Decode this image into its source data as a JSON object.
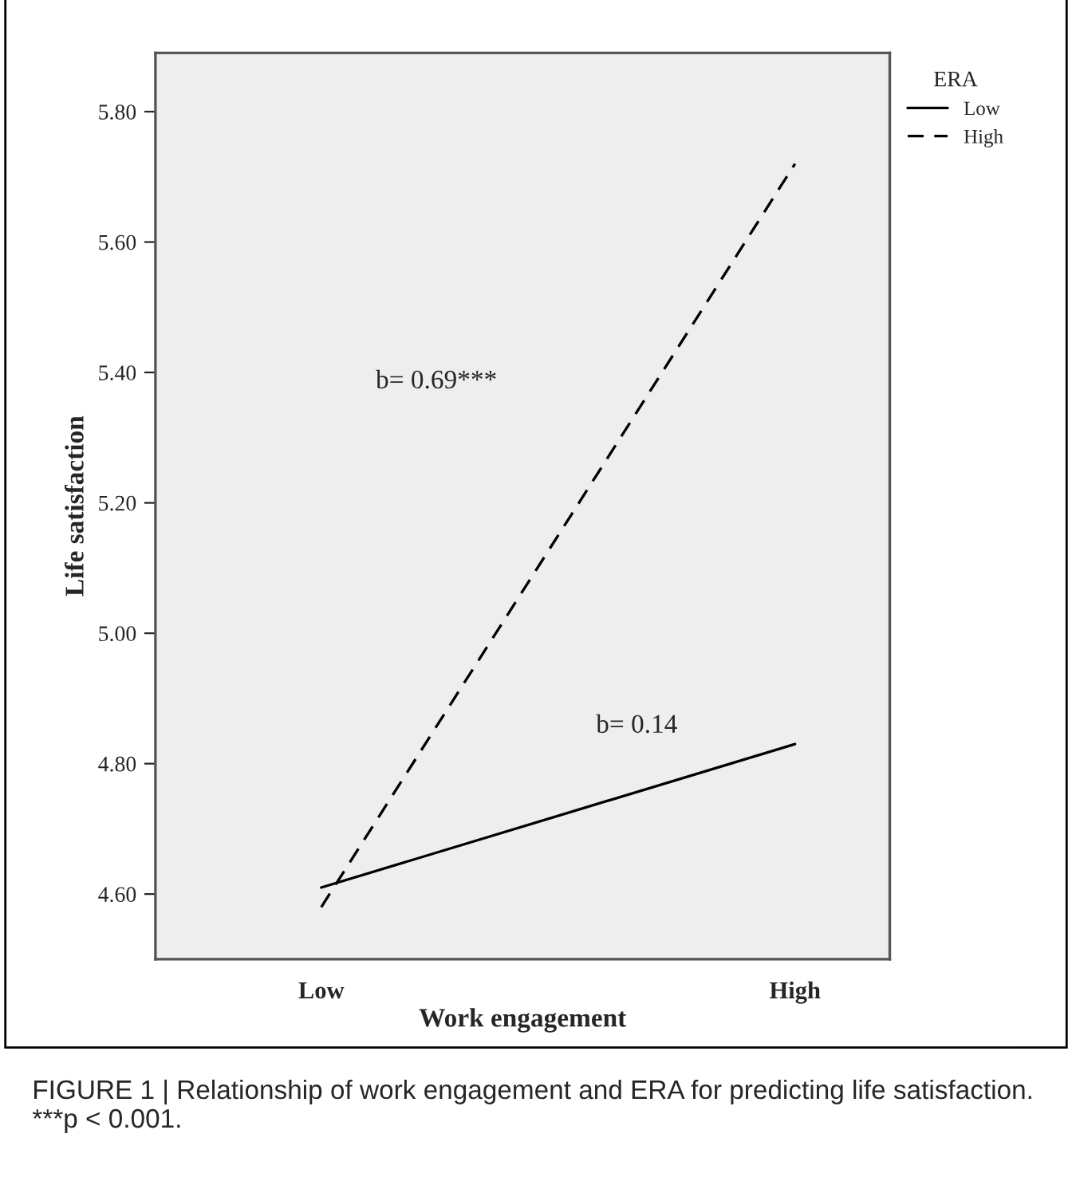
{
  "chart_data": {
    "type": "line",
    "xlabel": "Work engagement",
    "ylabel": "Life satisfaction",
    "legend_title": "ERA",
    "legend": "top right",
    "categories": [
      "Low",
      "High"
    ],
    "series": [
      {
        "name": "Low",
        "color": "#000000",
        "values": [
          4.61,
          4.83
        ],
        "line_style": "solid"
      },
      {
        "name": "High",
        "color": "#000000",
        "values": [
          4.58,
          5.72
        ],
        "line_style": "dashed"
      }
    ],
    "ylim": [
      4.5,
      5.89
    ],
    "yticks": [
      {
        "value": 4.6,
        "label": "4.60"
      },
      {
        "value": 4.8,
        "label": "4.80"
      },
      {
        "value": 5.0,
        "label": "5.00"
      },
      {
        "value": 5.2,
        "label": "5.20"
      },
      {
        "value": 5.4,
        "label": "5.40"
      },
      {
        "value": 5.6,
        "label": "5.60"
      },
      {
        "value": 5.8,
        "label": "5.80"
      }
    ],
    "grid": false,
    "marker": "none",
    "annotations": [
      "b= 0.69***",
      "b= 0.14",
      "FIGURE 1 | Relationship of work engagement and ERA for predicting life satisfaction. ***p < 0.001."
    ]
  }
}
